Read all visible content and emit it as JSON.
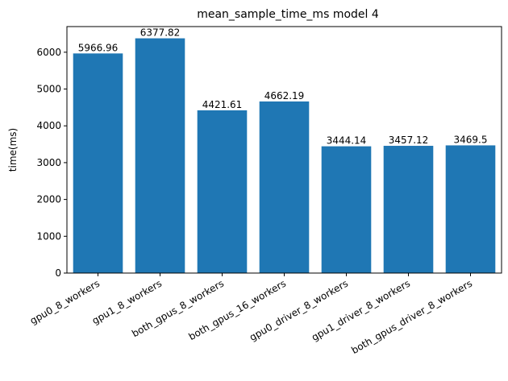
{
  "chart_data": {
    "type": "bar",
    "title": "mean_sample_time_ms model 4",
    "xlabel": "",
    "ylabel": "time(ms)",
    "categories": [
      "gpu0_8_workers",
      "gpu1_8_workers",
      "both_gpus_8_workers",
      "both_gpus_16_workers",
      "gpu0_driver_8_workers",
      "gpu1_driver_8_workers",
      "both_gpus_driver_8_workers"
    ],
    "values": [
      5966.96,
      6377.82,
      4421.61,
      4662.19,
      3444.14,
      3457.12,
      3469.5
    ],
    "value_labels": [
      "5966.96",
      "6377.82",
      "4421.61",
      "4662.19",
      "3444.14",
      "3457.12",
      "3469.5"
    ],
    "ylim": [
      0,
      6696.7
    ],
    "yticks": [
      0,
      1000,
      2000,
      3000,
      4000,
      5000,
      6000
    ],
    "ytick_labels": [
      "0",
      "1000",
      "2000",
      "3000",
      "4000",
      "5000",
      "6000"
    ],
    "grid": false,
    "legend": "none",
    "bar_color": "#1f77b4"
  }
}
